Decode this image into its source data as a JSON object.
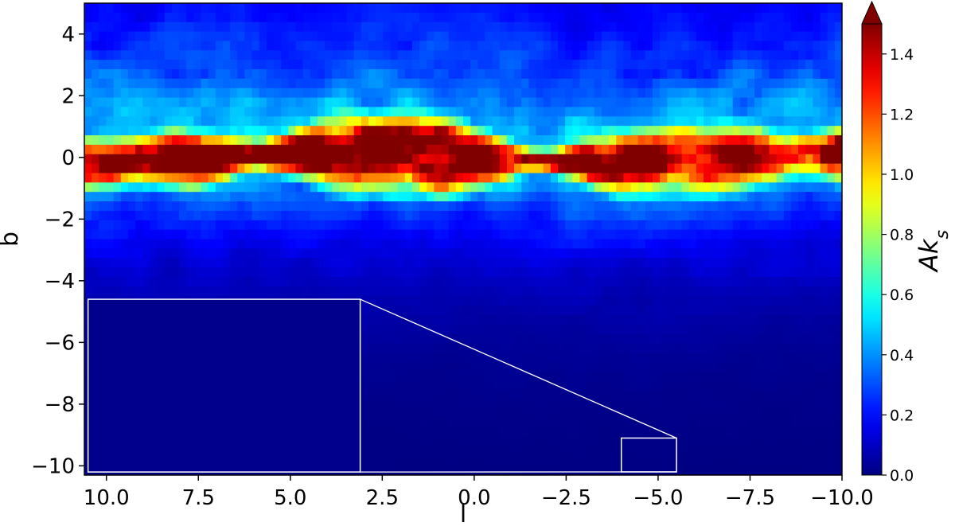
{
  "chart_data": {
    "type": "heatmap",
    "title": "",
    "xlabel": "l",
    "ylabel": "b",
    "colorbar_label": "Ak_s",
    "colormap": "jet",
    "colorbar_extend": "max",
    "xlim": [
      10.6,
      -10.0
    ],
    "ylim": [
      -10.3,
      5.0
    ],
    "clim": [
      0.0,
      1.5
    ],
    "x_ticks": [
      10.0,
      7.5,
      5.0,
      2.5,
      0.0,
      -2.5,
      -5.0,
      -7.5,
      -10.0
    ],
    "x_tick_labels": [
      "10.0",
      "7.5",
      "5.0",
      "2.5",
      "0.0",
      "−2.5",
      "−5.0",
      "−7.5",
      "−10.0"
    ],
    "y_ticks": [
      4,
      2,
      0,
      -2,
      -4,
      -6,
      -8,
      -10
    ],
    "y_tick_labels": [
      "4",
      "2",
      "0",
      "−2",
      "−4",
      "−6",
      "−8",
      "−10"
    ],
    "colorbar_ticks": [
      0.0,
      0.2,
      0.4,
      0.6,
      0.8,
      1.0,
      1.2,
      1.4
    ],
    "colorbar_tick_labels": [
      "0.0",
      "0.2",
      "0.4",
      "0.6",
      "0.8",
      "1.0",
      "1.2",
      "1.4"
    ],
    "grid": false,
    "features": {
      "plane_center_b": 0.0,
      "plane_saturated_half_width_b": 0.9,
      "peak_extinction": 1.5,
      "background_extinction_at_b_minus_10": 0.05
    },
    "zoom_inset": {
      "region_l": [
        -4.0,
        -5.5
      ],
      "region_b": [
        -10.3,
        -9.1
      ],
      "inset_l": [
        10.5,
        3.1
      ],
      "inset_b": [
        -10.2,
        -4.6
      ],
      "inset_value": 0.02
    }
  }
}
